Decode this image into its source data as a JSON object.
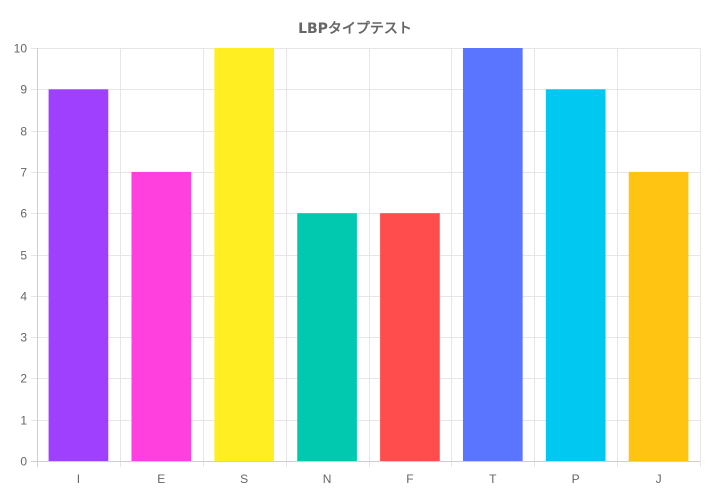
{
  "chart_data": {
    "type": "bar",
    "title": "LBPタイプテスト",
    "xlabel": "",
    "ylabel": "",
    "categories": [
      "I",
      "E",
      "S",
      "N",
      "F",
      "T",
      "P",
      "J"
    ],
    "values": [
      9,
      7,
      10,
      6,
      6,
      10,
      9,
      7
    ],
    "colors": [
      "#9f40ff",
      "#ff40df",
      "#ffee22",
      "#00c9b0",
      "#ff4d4d",
      "#5a75ff",
      "#00c8f0",
      "#ffc312"
    ],
    "ylim": [
      0,
      10
    ],
    "y_ticks": [
      0,
      1,
      2,
      3,
      4,
      5,
      6,
      7,
      8,
      9,
      10
    ],
    "grid": true,
    "legend": "none"
  }
}
